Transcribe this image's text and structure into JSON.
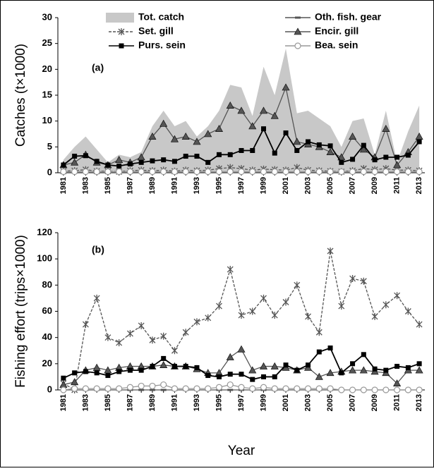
{
  "chart_data": [
    {
      "type": "line",
      "ylabel": "Catches (t×1000)",
      "annotation": "(a)",
      "categories": [
        "1981",
        null,
        "1983",
        null,
        "1985",
        null,
        "1987",
        null,
        "1989",
        null,
        "1991",
        null,
        "1993",
        null,
        "1995",
        null,
        "1997",
        null,
        "1999",
        null,
        "2001",
        null,
        "2003",
        null,
        "2005",
        null,
        "2007",
        null,
        "2009",
        null,
        "2011",
        null,
        "2013"
      ],
      "ylim": [
        0,
        30
      ],
      "yticks": [
        0,
        5,
        10,
        15,
        20,
        25,
        30
      ],
      "legend": "top",
      "series": [
        {
          "name": "Tot. catch",
          "kind": "area",
          "color": "#c8c8c8",
          "values": [
            2.5,
            5,
            7,
            4.5,
            2,
            3.5,
            3,
            4,
            9,
            12,
            9,
            10,
            7,
            9,
            12,
            17,
            16.5,
            11,
            20.5,
            15,
            24,
            11.5,
            12,
            10.5,
            9,
            5,
            10,
            10.5,
            3.5,
            12,
            2,
            8,
            13
          ]
        },
        {
          "name": "Oth. fish. gear",
          "marker": "dash",
          "color": "#555555",
          "values": [
            0.1,
            0.1,
            0.1,
            0.1,
            0.1,
            0.1,
            0.1,
            0.1,
            0.1,
            0.1,
            0.1,
            0.1,
            0.1,
            0.1,
            0.1,
            0.1,
            0.1,
            0.1,
            0.1,
            0.1,
            0.1,
            0.1,
            0.1,
            0.1,
            0.1,
            0.1,
            0.1,
            0.1,
            0.1,
            0.1,
            0.1,
            0.1,
            0.1
          ]
        },
        {
          "name": "Set. gill",
          "marker": "star",
          "dashed": true,
          "color": "#555555",
          "values": [
            0.3,
            0.4,
            0.6,
            0.3,
            0.3,
            0.2,
            0.4,
            0.5,
            0.4,
            0.5,
            0.3,
            0.5,
            0.4,
            0.5,
            0.8,
            1,
            0.8,
            0.5,
            0.7,
            0.6,
            0.5,
            1,
            0.5,
            0.4,
            0.3,
            0.2,
            0.4,
            0.8,
            0.6,
            0.8,
            0.5,
            0.5,
            0.4
          ]
        },
        {
          "name": "Encir. gill",
          "marker": "triangle",
          "color": "#555555",
          "values": [
            1.5,
            2,
            3.5,
            2,
            1.5,
            2.5,
            2,
            3,
            7,
            9.5,
            6.5,
            7,
            6,
            7.5,
            8.5,
            13,
            12,
            9,
            12,
            11,
            16.5,
            6,
            5.5,
            5,
            4,
            3,
            7,
            4.5,
            3,
            8.5,
            1.5,
            4,
            7
          ]
        },
        {
          "name": "Purs. sein",
          "marker": "square",
          "color": "#000000",
          "values": [
            1.5,
            3.2,
            3.3,
            2.2,
            1.5,
            1.3,
            1.7,
            2,
            2.3,
            2.5,
            2.2,
            3.2,
            3.2,
            2,
            3.5,
            3.5,
            4.3,
            4.3,
            8.5,
            3.8,
            7.7,
            4.3,
            6,
            5.4,
            5.2,
            2,
            2.6,
            5.3,
            2.5,
            3,
            3,
            3.4,
            6
          ]
        },
        {
          "name": "Bea. sein",
          "marker": "circle",
          "color": "#999999",
          "values": [
            0.2,
            0.2,
            0.2,
            0.2,
            0.2,
            0.2,
            0.2,
            0.2,
            0.2,
            0.2,
            0.2,
            0.2,
            0.2,
            0.2,
            0.2,
            0.2,
            0.2,
            0.2,
            0.2,
            0.2,
            0.2,
            0.2,
            0.2,
            0.2,
            0.2,
            0.2,
            0.2,
            0.2,
            0.2,
            0.2,
            0.2,
            0.2,
            0.2
          ]
        }
      ]
    },
    {
      "type": "line",
      "ylabel": "Fishing effort (trips×1000)",
      "xlabel": "Year",
      "annotation": "(b)",
      "categories": [
        "1981",
        null,
        "1983",
        null,
        "1985",
        null,
        "1987",
        null,
        "1989",
        null,
        "1991",
        null,
        "1993",
        null,
        "1995",
        null,
        "1997",
        null,
        "1999",
        null,
        "2001",
        null,
        "2003",
        null,
        "2005",
        null,
        "2007",
        null,
        "2009",
        null,
        "2011",
        null,
        "2013"
      ],
      "ylim": [
        0,
        120
      ],
      "yticks": [
        0,
        20,
        40,
        60,
        80,
        100,
        120
      ],
      "series": [
        {
          "marker": "dash",
          "color": "#555555",
          "values": [
            0,
            0,
            0,
            0,
            0,
            0,
            0,
            0,
            0,
            0,
            0,
            0,
            0,
            0,
            0,
            0,
            0,
            0,
            0,
            0,
            0,
            0,
            0,
            0,
            0,
            0,
            0,
            0,
            0,
            0,
            0,
            0,
            0
          ]
        },
        {
          "marker": "star",
          "dashed": true,
          "color": "#555555",
          "values": [
            5,
            0,
            50,
            70,
            40,
            36,
            43,
            49,
            38,
            41,
            30,
            44,
            52,
            55,
            64,
            92,
            57,
            60,
            70,
            57,
            67,
            80,
            56,
            44,
            106,
            64,
            85,
            83,
            56,
            65,
            72,
            60,
            50
          ]
        },
        {
          "marker": "triangle",
          "color": "#555555",
          "values": [
            4,
            6,
            15,
            17,
            15,
            17,
            18,
            18,
            18,
            19,
            18,
            18,
            16,
            13,
            13,
            25,
            31,
            15,
            18,
            18,
            17,
            15,
            17,
            10,
            13,
            14,
            15,
            15,
            14,
            13,
            5,
            15,
            15
          ]
        },
        {
          "marker": "square",
          "color": "#000000",
          "values": [
            9,
            13,
            14,
            13,
            11,
            14,
            15,
            15,
            18,
            24,
            18,
            18,
            17,
            11,
            10,
            12,
            12,
            8,
            10,
            10,
            19,
            15,
            19,
            29,
            32,
            13,
            20,
            27,
            16,
            15,
            18,
            17,
            20
          ]
        },
        {
          "marker": "circle",
          "color": "#999999",
          "values": [
            0,
            1,
            1,
            1,
            1,
            1,
            2,
            3,
            3,
            4,
            1,
            1,
            1,
            1,
            2,
            4,
            2,
            1,
            2,
            1,
            1,
            1,
            1,
            1,
            1,
            0,
            0,
            0,
            0,
            0,
            0,
            0,
            0
          ]
        }
      ]
    }
  ]
}
